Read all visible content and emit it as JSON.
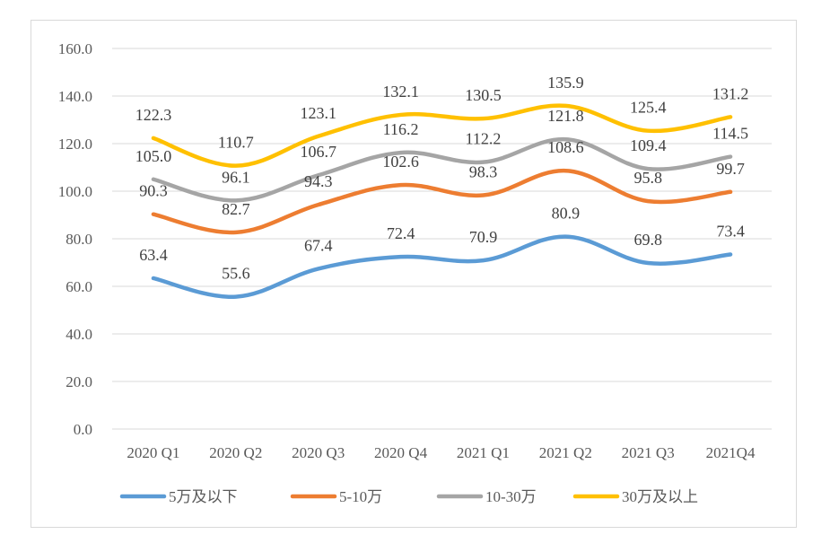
{
  "chart_data": {
    "type": "line",
    "title": "",
    "xlabel": "",
    "ylabel": "",
    "ylim": [
      0,
      160
    ],
    "yticks": [
      "0.0",
      "20.0",
      "40.0",
      "60.0",
      "80.0",
      "100.0",
      "120.0",
      "140.0",
      "160.0"
    ],
    "grid": true,
    "legend_position": "bottom",
    "categories": [
      "2020 Q1",
      "2020 Q2",
      "2020 Q3",
      "2020 Q4",
      "2021 Q1",
      "2021 Q2",
      "2021 Q3",
      "2021Q4"
    ],
    "series": [
      {
        "name": "5万及以下",
        "color": "#5b9bd5",
        "values": [
          63.4,
          55.6,
          67.4,
          72.4,
          70.9,
          80.9,
          69.8,
          73.4
        ]
      },
      {
        "name": "5-10万",
        "color": "#ed7d31",
        "values": [
          90.3,
          82.7,
          94.3,
          102.6,
          98.3,
          108.6,
          95.8,
          99.7
        ]
      },
      {
        "name": "10-30万",
        "color": "#a5a5a5",
        "values": [
          105.0,
          96.1,
          106.7,
          116.2,
          112.2,
          121.8,
          109.4,
          114.5
        ]
      },
      {
        "name": "30万及以上",
        "color": "#ffc000",
        "values": [
          122.3,
          110.7,
          123.1,
          132.1,
          130.5,
          135.9,
          125.4,
          131.2
        ]
      }
    ],
    "value_labels": [
      [
        "63.4",
        "55.6",
        "67.4",
        "72.4",
        "70.9",
        "80.9",
        "69.8",
        "73.4"
      ],
      [
        "90.3",
        "82.7",
        "94.3",
        "102.6",
        "98.3",
        "108.6",
        "95.8",
        "99.7"
      ],
      [
        "105.0",
        "96.1",
        "106.7",
        "116.2",
        "112.2",
        "121.8",
        "109.4",
        "114.5"
      ],
      [
        "122.3",
        "110.7",
        "123.1",
        "132.1",
        "130.5",
        "135.9",
        "125.4",
        "131.2"
      ]
    ]
  }
}
